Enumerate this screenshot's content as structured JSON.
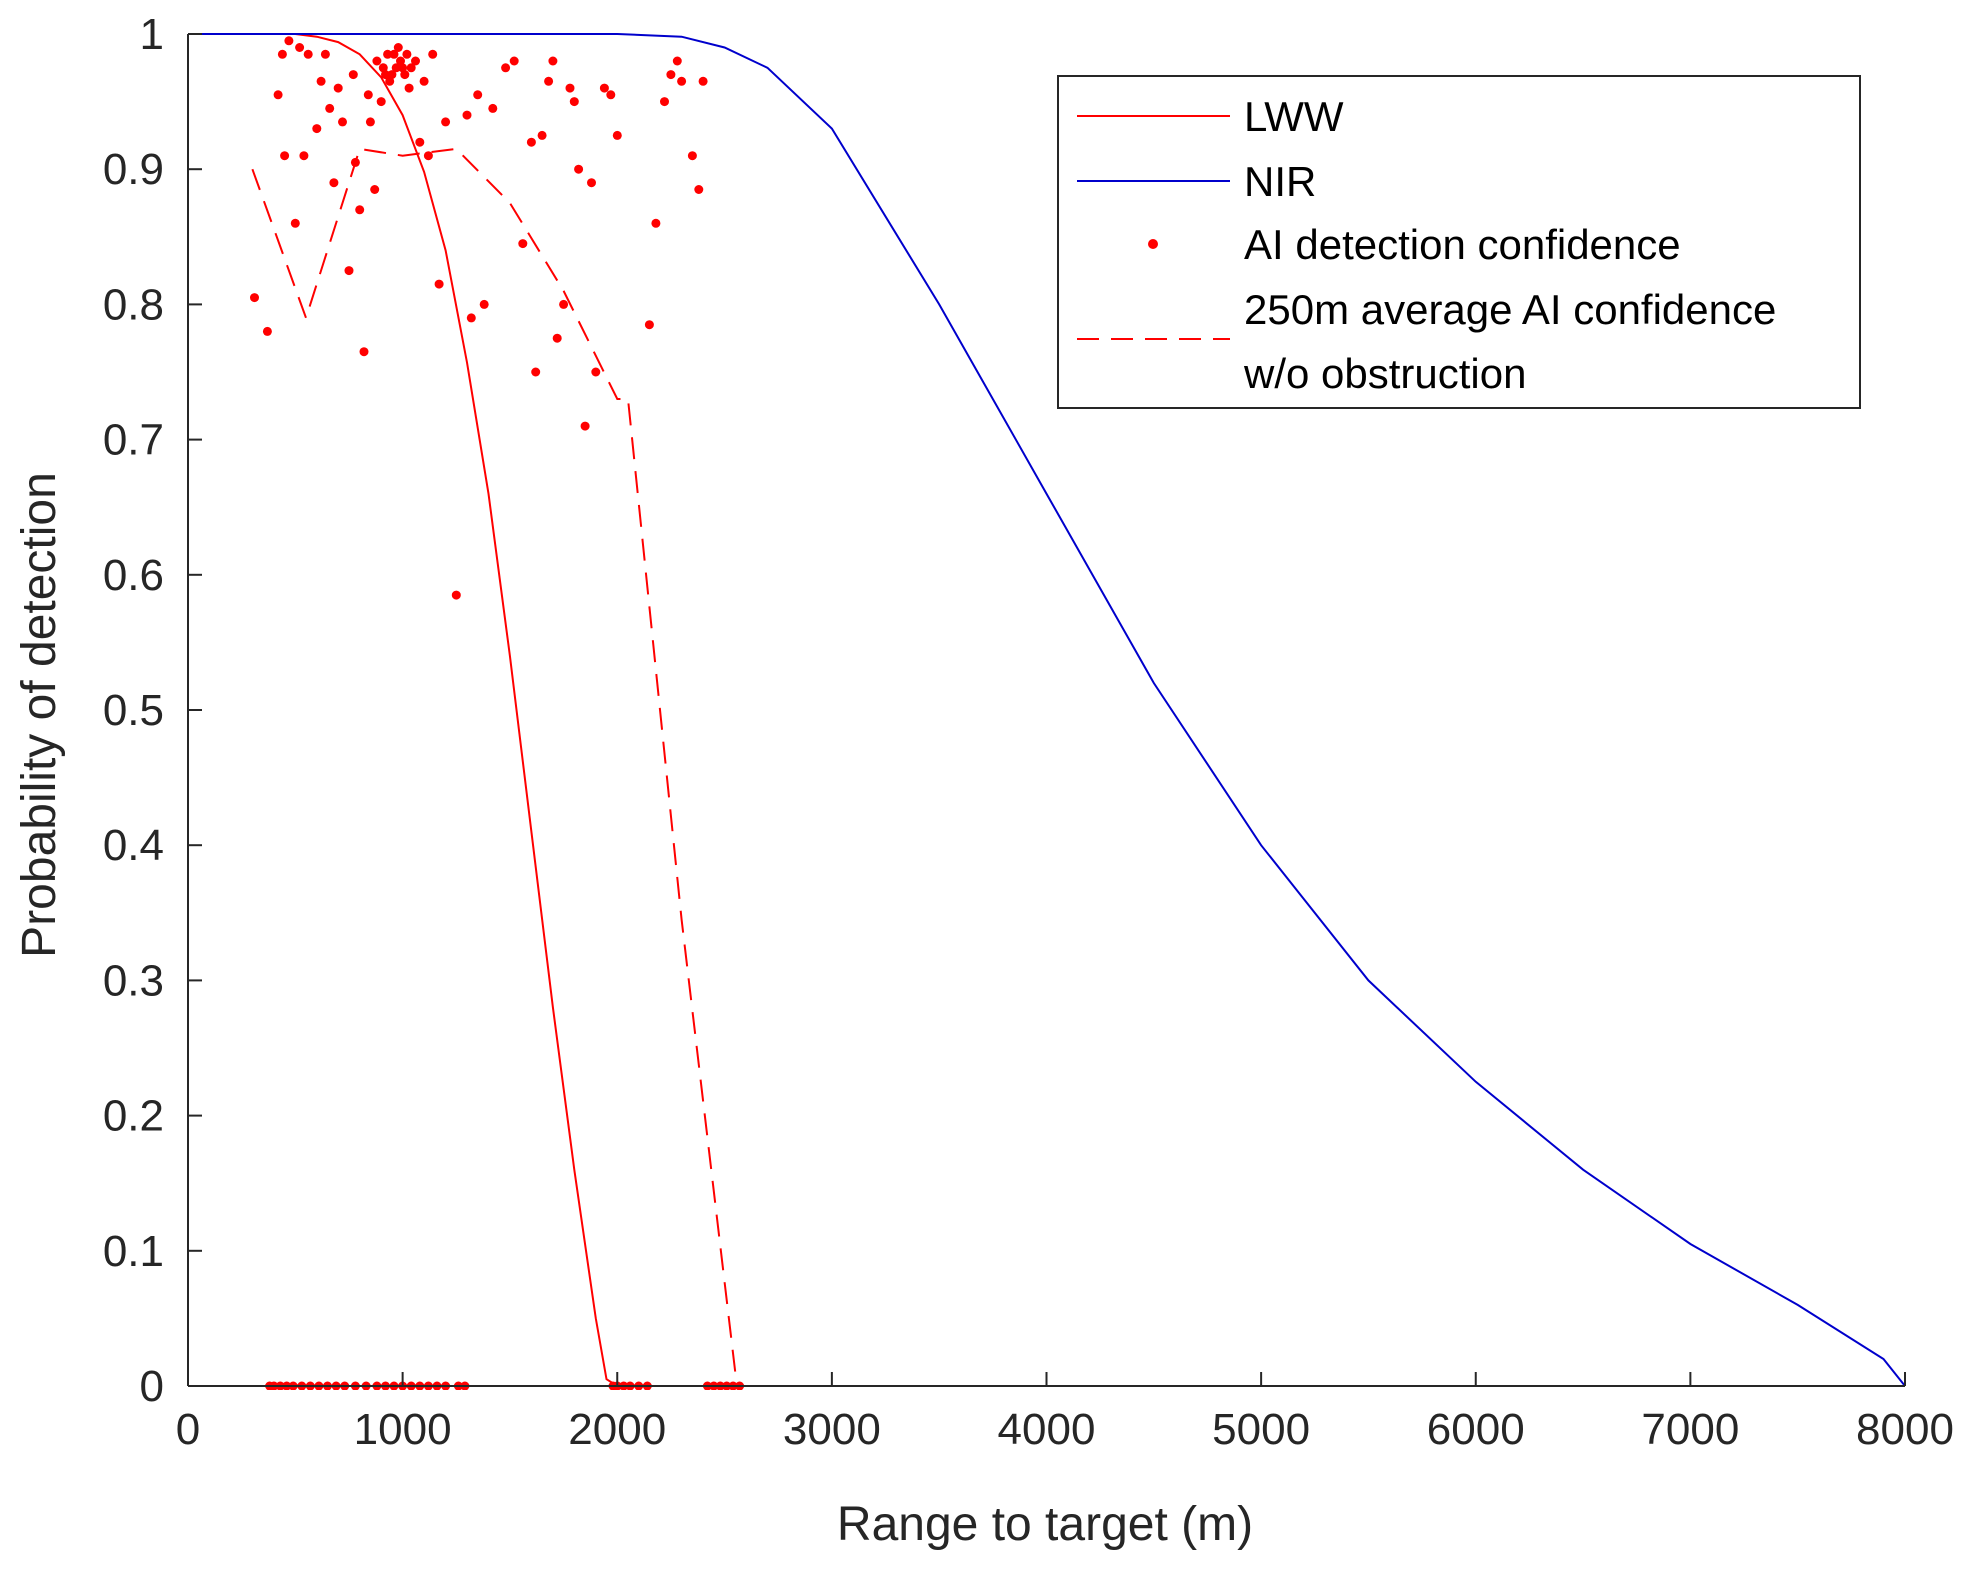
{
  "chart_data": {
    "type": "line",
    "title": "",
    "xlabel": "Range to target (m)",
    "ylabel": "Probability of detection",
    "xlim": [
      0,
      8000
    ],
    "ylim": [
      0,
      1
    ],
    "xticks": [
      0,
      1000,
      2000,
      3000,
      4000,
      5000,
      6000,
      7000,
      8000
    ],
    "yticks": [
      0,
      0.1,
      0.2,
      0.3,
      0.4,
      0.5,
      0.6,
      0.7,
      0.8,
      0.9,
      1
    ],
    "xtick_labels": [
      "0",
      "1000",
      "2000",
      "3000",
      "4000",
      "5000",
      "6000",
      "7000",
      "8000"
    ],
    "ytick_labels": [
      "0",
      "0.1",
      "0.2",
      "0.3",
      "0.4",
      "0.5",
      "0.6",
      "0.7",
      "0.8",
      "0.9",
      "1"
    ],
    "grid": false,
    "legend_position": "top-right",
    "colors": {
      "lww": "#ff0000",
      "nir": "#0000cc",
      "ai": "#ff0000",
      "avg": "#ff0000",
      "axis": "#262626"
    },
    "series": [
      {
        "name": "LWW",
        "style": "solid",
        "x": [
          0,
          300,
          500,
          600,
          700,
          800,
          900,
          1000,
          1100,
          1200,
          1300,
          1400,
          1500,
          1600,
          1700,
          1800,
          1900,
          1950,
          2000,
          2200,
          2500
        ],
        "y": [
          1,
          1,
          1,
          0.998,
          0.994,
          0.985,
          0.968,
          0.94,
          0.898,
          0.84,
          0.757,
          0.66,
          0.54,
          0.41,
          0.28,
          0.16,
          0.05,
          0.005,
          0,
          0,
          0
        ]
      },
      {
        "name": "NIR",
        "style": "solid",
        "x": [
          0,
          500,
          1000,
          1500,
          2000,
          2300,
          2500,
          2700,
          3000,
          3500,
          4000,
          4500,
          5000,
          5500,
          6000,
          6500,
          7000,
          7500,
          7900,
          8000
        ],
        "y": [
          1,
          1,
          1,
          1,
          1,
          0.998,
          0.99,
          0.975,
          0.93,
          0.8,
          0.66,
          0.52,
          0.4,
          0.3,
          0.225,
          0.16,
          0.105,
          0.06,
          0.02,
          0
        ]
      },
      {
        "name": "AI detection confidence",
        "style": "markers",
        "x": [
          310,
          370,
          420,
          440,
          450,
          470,
          500,
          520,
          540,
          560,
          600,
          620,
          640,
          660,
          680,
          700,
          720,
          750,
          770,
          780,
          800,
          820,
          840,
          850,
          870,
          880,
          900,
          910,
          920,
          930,
          940,
          950,
          960,
          970,
          980,
          990,
          1000,
          1010,
          1020,
          1030,
          1040,
          1060,
          1080,
          1100,
          1120,
          1140,
          1170,
          1200,
          1250,
          1300,
          1320,
          1350,
          1380,
          1420,
          1480,
          1520,
          1560,
          1600,
          1620,
          1650,
          1680,
          1700,
          1720,
          1750,
          1780,
          1800,
          1820,
          1850,
          1880,
          1900,
          1940,
          1970,
          2000,
          2150,
          2180,
          2220,
          2250,
          2280,
          2300,
          2350,
          2380,
          2400,
          380,
          400,
          430,
          460,
          490,
          530,
          570,
          610,
          650,
          690,
          730,
          780,
          830,
          880,
          920,
          960,
          1000,
          1040,
          1080,
          1120,
          1160,
          1200,
          1260,
          1290,
          1980,
          2000,
          2030,
          2060,
          2100,
          2140,
          2420,
          2450,
          2480,
          2510,
          2540,
          2570
        ],
        "y": [
          0.805,
          0.78,
          0.955,
          0.985,
          0.91,
          0.995,
          0.86,
          0.99,
          0.91,
          0.985,
          0.93,
          0.965,
          0.985,
          0.945,
          0.89,
          0.96,
          0.935,
          0.825,
          0.97,
          0.905,
          0.87,
          0.765,
          0.955,
          0.935,
          0.885,
          0.98,
          0.95,
          0.975,
          0.97,
          0.985,
          0.965,
          0.97,
          0.985,
          0.975,
          0.99,
          0.98,
          0.975,
          0.97,
          0.985,
          0.96,
          0.975,
          0.98,
          0.92,
          0.965,
          0.91,
          0.985,
          0.815,
          0.935,
          0.585,
          0.94,
          0.79,
          0.955,
          0.8,
          0.945,
          0.975,
          0.98,
          0.845,
          0.92,
          0.75,
          0.925,
          0.965,
          0.98,
          0.775,
          0.8,
          0.96,
          0.95,
          0.9,
          0.71,
          0.89,
          0.75,
          0.96,
          0.955,
          0.925,
          0.785,
          0.86,
          0.95,
          0.97,
          0.98,
          0.965,
          0.91,
          0.885,
          0.965,
          0,
          0,
          0,
          0,
          0,
          0,
          0,
          0,
          0,
          0,
          0,
          0,
          0,
          0,
          0,
          0,
          0,
          0,
          0,
          0,
          0,
          0,
          0,
          0,
          0,
          0,
          0,
          0,
          0,
          0,
          0,
          0,
          0,
          0,
          0,
          0
        ]
      },
      {
        "name": "250m average AI confidence w/o obstruction",
        "style": "dashed",
        "x": [
          300,
          550,
          800,
          1000,
          1250,
          1500,
          1750,
          2000,
          2050,
          2300,
          2550
        ],
        "y": [
          0.9,
          0.79,
          0.915,
          0.91,
          0.915,
          0.875,
          0.81,
          0.73,
          0.73,
          0.345,
          0.01
        ]
      }
    ],
    "legend": [
      {
        "series": "LWW",
        "label": "LWW"
      },
      {
        "series": "NIR",
        "label": "NIR"
      },
      {
        "series": "AI detection confidence",
        "label": "AI detection confidence"
      },
      {
        "series": "250m average AI confidence w/o obstruction",
        "label": "250m average AI confidence",
        "label2": "w/o obstruction"
      }
    ]
  }
}
